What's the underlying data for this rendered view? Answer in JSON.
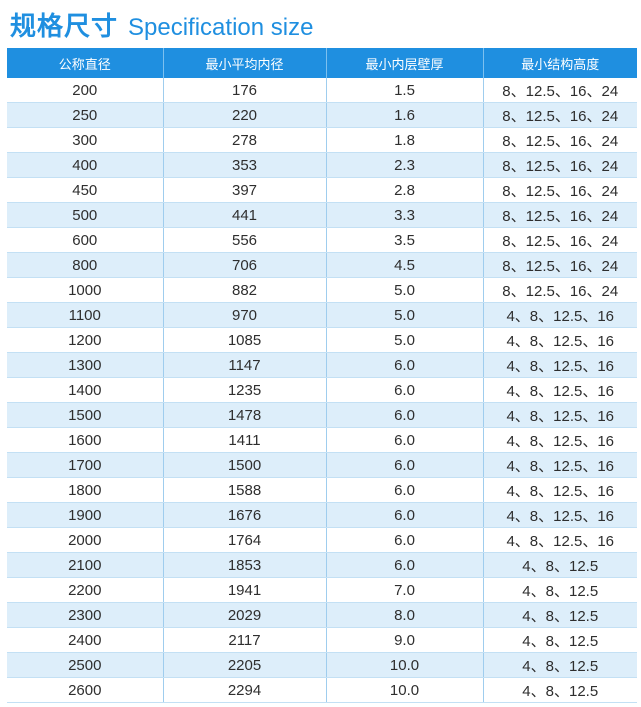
{
  "title": {
    "zh": "规格尺寸",
    "en": "Specification size"
  },
  "table": {
    "headers": [
      "公称直径",
      "最小平均内径",
      "最小内层壁厚",
      "最小结构高度"
    ],
    "rows": [
      [
        "200",
        "176",
        "1.5",
        "8、12.5、16、24"
      ],
      [
        "250",
        "220",
        "1.6",
        "8、12.5、16、24"
      ],
      [
        "300",
        "278",
        "1.8",
        "8、12.5、16、24"
      ],
      [
        "400",
        "353",
        "2.3",
        "8、12.5、16、24"
      ],
      [
        "450",
        "397",
        "2.8",
        "8、12.5、16、24"
      ],
      [
        "500",
        "441",
        "3.3",
        "8、12.5、16、24"
      ],
      [
        "600",
        "556",
        "3.5",
        "8、12.5、16、24"
      ],
      [
        "800",
        "706",
        "4.5",
        "8、12.5、16、24"
      ],
      [
        "1000",
        "882",
        "5.0",
        "8、12.5、16、24"
      ],
      [
        "1100",
        "970",
        "5.0",
        "4、8、12.5、16"
      ],
      [
        "1200",
        "1085",
        "5.0",
        "4、8、12.5、16"
      ],
      [
        "1300",
        "1147",
        "6.0",
        "4、8、12.5、16"
      ],
      [
        "1400",
        "1235",
        "6.0",
        "4、8、12.5、16"
      ],
      [
        "1500",
        "1478",
        "6.0",
        "4、8、12.5、16"
      ],
      [
        "1600",
        "1411",
        "6.0",
        "4、8、12.5、16"
      ],
      [
        "1700",
        "1500",
        "6.0",
        "4、8、12.5、16"
      ],
      [
        "1800",
        "1588",
        "6.0",
        "4、8、12.5、16"
      ],
      [
        "1900",
        "1676",
        "6.0",
        "4、8、12.5、16"
      ],
      [
        "2000",
        "1764",
        "6.0",
        "4、8、12.5、16"
      ],
      [
        "2100",
        "1853",
        "6.0",
        "4、8、12.5"
      ],
      [
        "2200",
        "1941",
        "7.0",
        "4、8、12.5"
      ],
      [
        "2300",
        "2029",
        "8.0",
        "4、8、12.5"
      ],
      [
        "2400",
        "2117",
        "9.0",
        "4、8、12.5"
      ],
      [
        "2500",
        "2205",
        "10.0",
        "4、8、12.5"
      ],
      [
        "2600",
        "2294",
        "10.0",
        "4、8、12.5"
      ]
    ]
  },
  "colors": {
    "accent": "#1f8fe0",
    "row_alt": "#ddeefa",
    "text": "#2e2e2e"
  }
}
